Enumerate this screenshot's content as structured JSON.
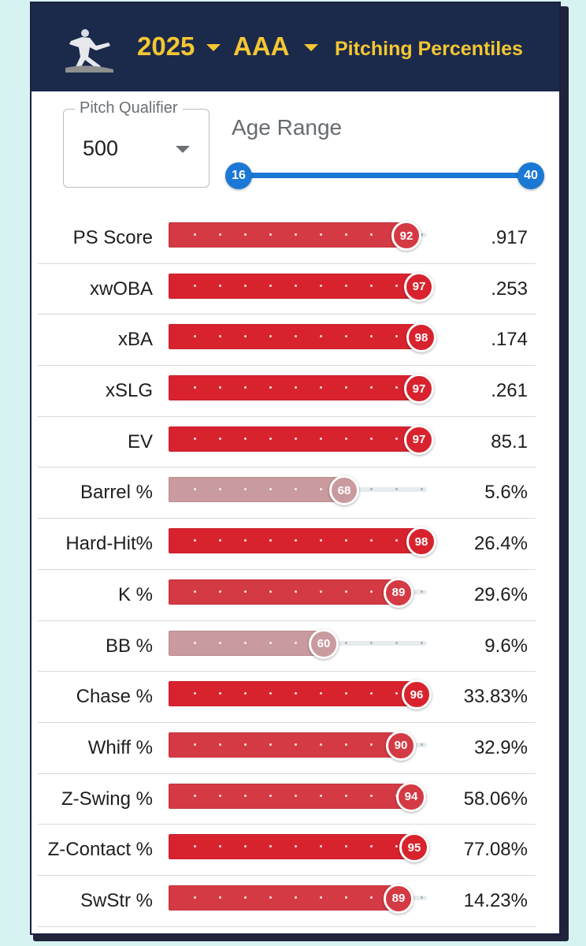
{
  "header": {
    "year": "2025",
    "level": "AAA",
    "title": "Pitching Percentiles",
    "logo_icon": "pitcher-silhouette-icon",
    "accent_color": "#f4c632",
    "background_color": "#1b2a4b"
  },
  "pitch_qualifier": {
    "label": "Pitch Qualifier",
    "value": "500"
  },
  "age_range": {
    "label": "Age Range",
    "min": "16",
    "max": "40"
  },
  "metrics": [
    {
      "label": "PS Score",
      "percentile": 92,
      "value": ".917"
    },
    {
      "label": "xwOBA",
      "percentile": 97,
      "value": ".253"
    },
    {
      "label": "xBA",
      "percentile": 98,
      "value": ".174"
    },
    {
      "label": "xSLG",
      "percentile": 97,
      "value": ".261"
    },
    {
      "label": "EV",
      "percentile": 97,
      "value": "85.1"
    },
    {
      "label": "Barrel %",
      "percentile": 68,
      "value": "5.6%"
    },
    {
      "label": "Hard-Hit%",
      "percentile": 98,
      "value": "26.4%"
    },
    {
      "label": "K %",
      "percentile": 89,
      "value": "29.6%"
    },
    {
      "label": "BB %",
      "percentile": 60,
      "value": "9.6%"
    },
    {
      "label": "Chase %",
      "percentile": 96,
      "value": "33.83%"
    },
    {
      "label": "Whiff %",
      "percentile": 90,
      "value": "32.9%"
    },
    {
      "label": "Z-Swing %",
      "percentile": 94,
      "value": "58.06%"
    },
    {
      "label": "Z-Contact %",
      "percentile": 95,
      "value": "77.08%"
    },
    {
      "label": "SwStr %",
      "percentile": 89,
      "value": "14.23%"
    }
  ],
  "colors": {
    "elite": "#d8232e",
    "strong": "#d43a44",
    "above_avg": "#c99a9e",
    "slider": "#1b78d4"
  }
}
